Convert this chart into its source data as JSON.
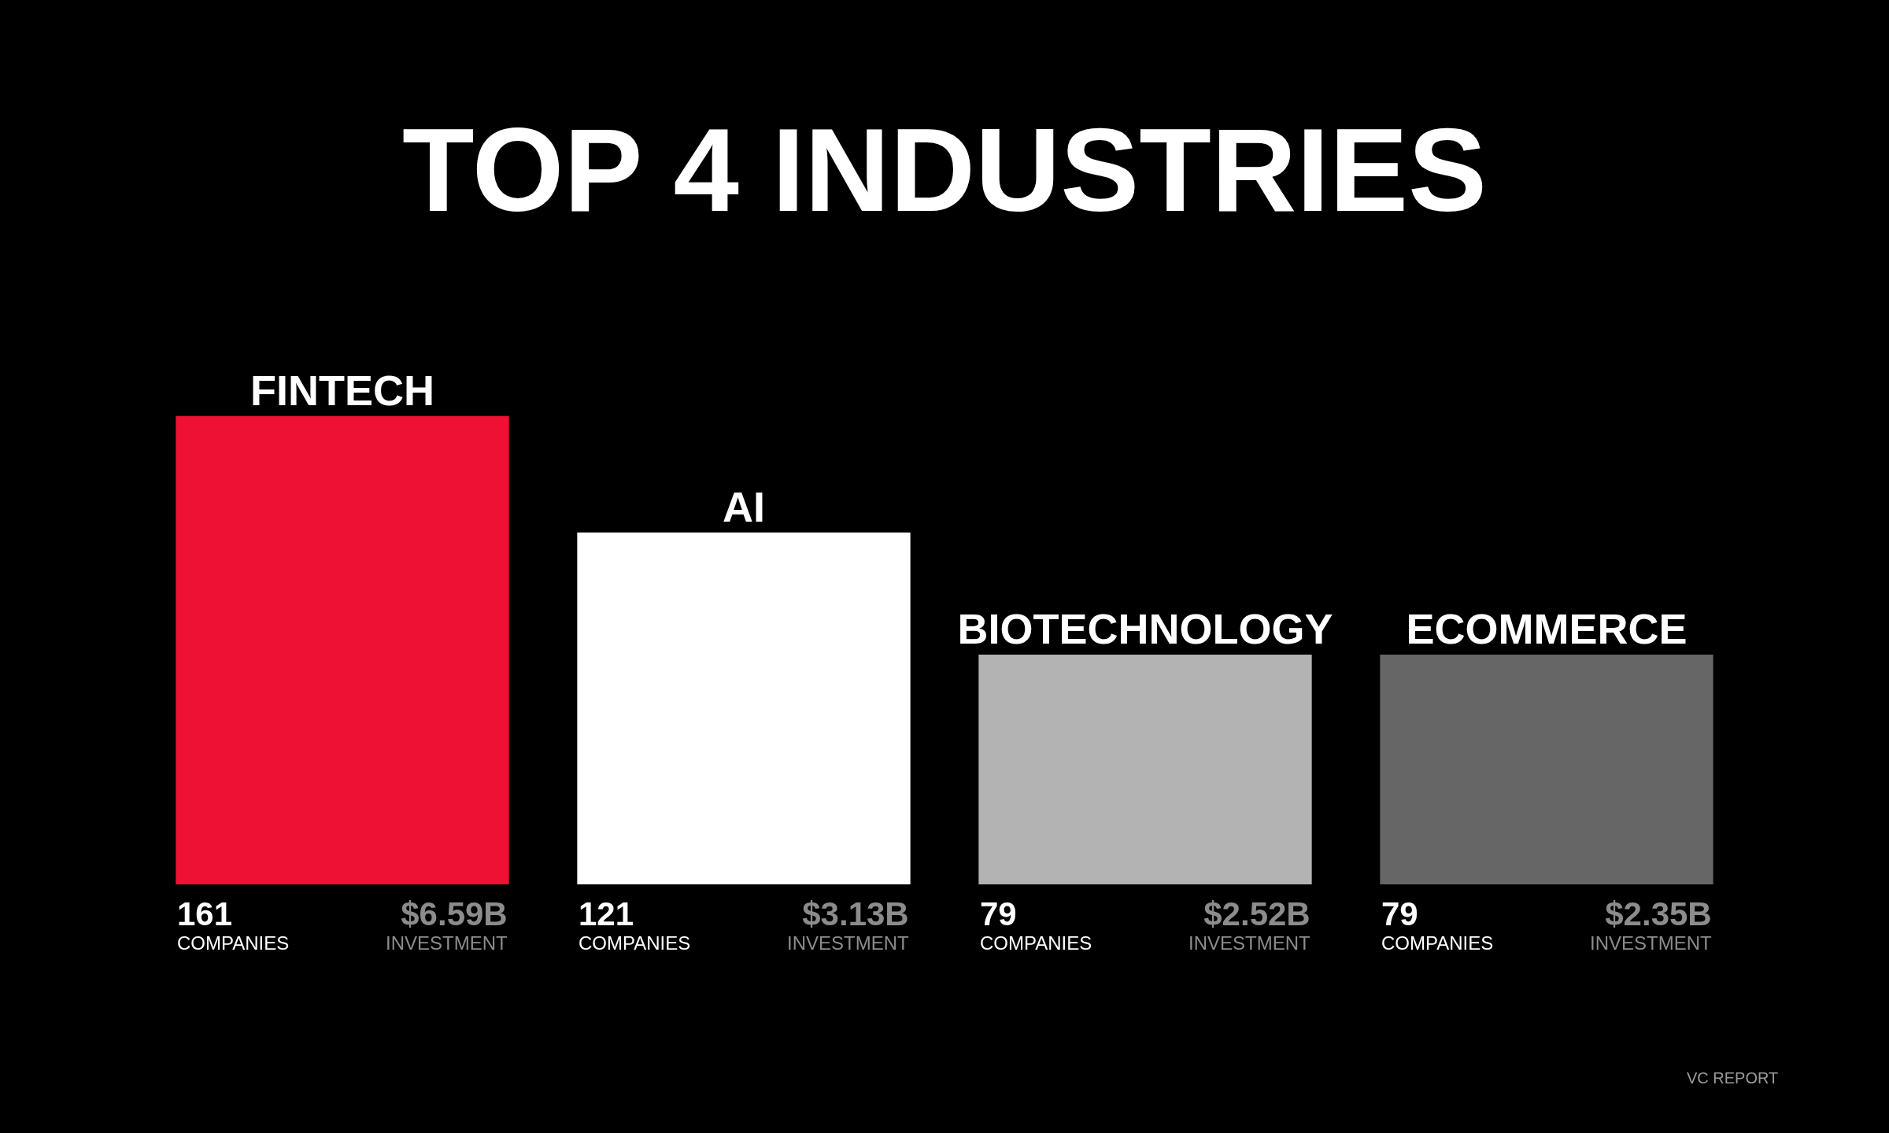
{
  "chart_data": {
    "type": "bar",
    "title": "TOP 4 INDUSTRIES",
    "categories": [
      "FINTECH",
      "AI",
      "BIOTECHNOLOGY",
      "ECOMMERCE"
    ],
    "values": [
      161,
      121,
      79,
      79
    ],
    "colors": [
      "#ee1133",
      "#ffffff",
      "#b3b3b3",
      "#666666"
    ],
    "value_labels": [
      "161\nCOMPANIES",
      "121\nCOMPANIES",
      "79\nCOMPANIES",
      "79\nCOMPANIES"
    ],
    "annotations": [
      "$6.59B\nINVESTMENT",
      "$3.13B\nINVESTMENT",
      "$2.52B\nINVESTMENT",
      "$2.35B\nINVESTMENT",
      "VC REPORT"
    ],
    "grid": false,
    "legend": false
  }
}
